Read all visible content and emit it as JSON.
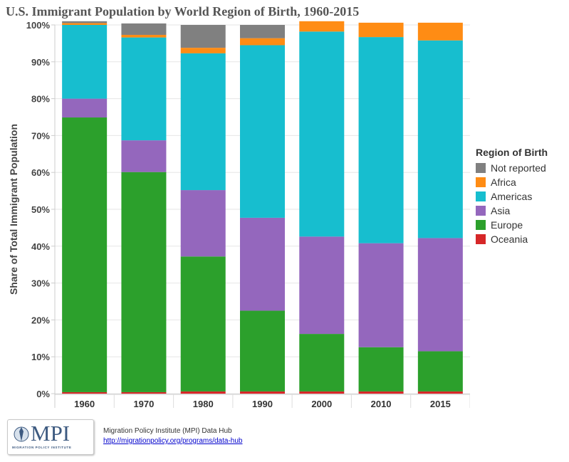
{
  "title": "U.S. Immigrant Population by World Region of Birth, 1960-2015",
  "footer": {
    "logo_text": "MPI",
    "logo_subtext": "MIGRATION POLICY INSTITUTE",
    "source": "Migration Policy Institute (MPI) Data Hub",
    "link": "http://migrationpolicy.org/programs/data-hub"
  },
  "legend": {
    "title": "Region of Birth",
    "items": [
      {
        "label": "Not reported",
        "color": "#808080"
      },
      {
        "label": "Africa",
        "color": "#ff8c14"
      },
      {
        "label": "Americas",
        "color": "#17becf"
      },
      {
        "label": "Asia",
        "color": "#9467bd"
      },
      {
        "label": "Europe",
        "color": "#2ca02c"
      },
      {
        "label": "Oceania",
        "color": "#d62728"
      }
    ]
  },
  "chart_data": {
    "type": "bar",
    "stacked": true,
    "title": "U.S. Immigrant Population by World Region of Birth, 1960-2015",
    "xlabel": "",
    "ylabel": "Share of Total Immigrant Population",
    "ylim": [
      0,
      100
    ],
    "yticks": [
      "0%",
      "10%",
      "20%",
      "30%",
      "40%",
      "50%",
      "60%",
      "70%",
      "80%",
      "90%",
      "100%"
    ],
    "categories": [
      "1960",
      "1970",
      "1980",
      "1990",
      "2000",
      "2010",
      "2015"
    ],
    "series": [
      {
        "name": "Oceania",
        "color": "#d62728",
        "values": [
          0.4,
          0.4,
          0.6,
          0.6,
          0.6,
          0.6,
          0.6
        ]
      },
      {
        "name": "Europe",
        "color": "#2ca02c",
        "values": [
          74.5,
          59.7,
          36.6,
          21.9,
          15.6,
          12.0,
          10.9
        ]
      },
      {
        "name": "Asia",
        "color": "#9467bd",
        "values": [
          5.1,
          8.6,
          18.0,
          25.2,
          26.4,
          28.2,
          30.7
        ]
      },
      {
        "name": "Americas",
        "color": "#17becf",
        "values": [
          20.0,
          27.9,
          37.1,
          46.8,
          55.6,
          55.9,
          53.6
        ]
      },
      {
        "name": "Africa",
        "color": "#ff8c14",
        "values": [
          0.5,
          0.7,
          1.5,
          1.9,
          2.8,
          3.9,
          4.8
        ]
      },
      {
        "name": "Not reported",
        "color": "#808080",
        "values": [
          0.5,
          3.1,
          6.2,
          3.6,
          0.0,
          0.0,
          0.0
        ]
      }
    ],
    "grid": true,
    "legend_position": "right"
  }
}
